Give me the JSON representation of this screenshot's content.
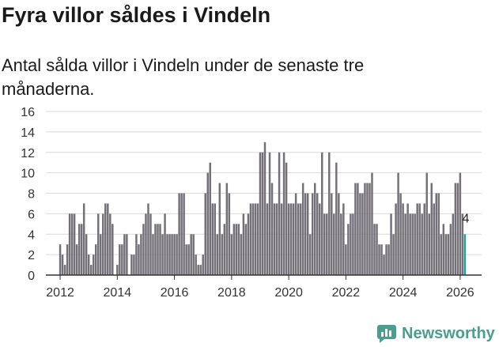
{
  "title": "Fyra villor såldes i Vindeln",
  "subtitle": "Antal sålda villor i Vindeln under de senaste tre månaderna.",
  "brand": {
    "name": "Newsworthy",
    "icon": "newsworthy-logo-icon",
    "color": "#4a9e8f"
  },
  "colors": {
    "bar": "#737078",
    "highlight": "#1aa39a",
    "grid": "#d9d9d9",
    "axis": "#333333"
  },
  "chart_data": {
    "type": "bar",
    "title": "Fyra villor såldes i Vindeln",
    "subtitle": "Antal sålda villor i Vindeln under de senaste tre månaderna.",
    "xlabel": "",
    "ylabel": "",
    "x_start": 2012.0,
    "step": 0.08333,
    "xlim": [
      2011.5,
      2026.75
    ],
    "ylim": [
      0,
      16
    ],
    "y_ticks": [
      0,
      2,
      4,
      6,
      8,
      10,
      12,
      14,
      16
    ],
    "x_ticks": [
      2012,
      2014,
      2016,
      2018,
      2020,
      2022,
      2024,
      2026
    ],
    "x_tick_labels": [
      "2012",
      "2014",
      "2016",
      "2018",
      "2020",
      "2022",
      "2024",
      "2026"
    ],
    "grid": true,
    "last_value_label": "4",
    "values": [
      3,
      2,
      1,
      3,
      6,
      6,
      6,
      3,
      5,
      5,
      7,
      4,
      2,
      1,
      2,
      3,
      6,
      4,
      6,
      7,
      7,
      6,
      5,
      0,
      1,
      3,
      3,
      4,
      4,
      0,
      2,
      2,
      4,
      3,
      4,
      5,
      6,
      7,
      6,
      4,
      5,
      5,
      5,
      4,
      6,
      4,
      4,
      4,
      4,
      4,
      8,
      8,
      8,
      3,
      3,
      4,
      4,
      2,
      1,
      1,
      2,
      8,
      10,
      11,
      7,
      7,
      4,
      9,
      4,
      5,
      9,
      8,
      4,
      5,
      5,
      5,
      4,
      6,
      5,
      6,
      7,
      7,
      7,
      7,
      12,
      12,
      13,
      7,
      12,
      9,
      7,
      7,
      12,
      7,
      12,
      11,
      7,
      7,
      7,
      8,
      7,
      7,
      9,
      8,
      8,
      4,
      8,
      9,
      8,
      7,
      12,
      6,
      6,
      12,
      8,
      6,
      11,
      8,
      6,
      7,
      3,
      5,
      6,
      6,
      9,
      9,
      8,
      8,
      9,
      9,
      9,
      10,
      5,
      5,
      3,
      3,
      2,
      3,
      3,
      6,
      4,
      7,
      10,
      8,
      7,
      6,
      7,
      6,
      6,
      6,
      7,
      7,
      6,
      7,
      10,
      6,
      9,
      7,
      8,
      8,
      4,
      5,
      4,
      4,
      5,
      6,
      9,
      9,
      10,
      6,
      4
    ]
  }
}
